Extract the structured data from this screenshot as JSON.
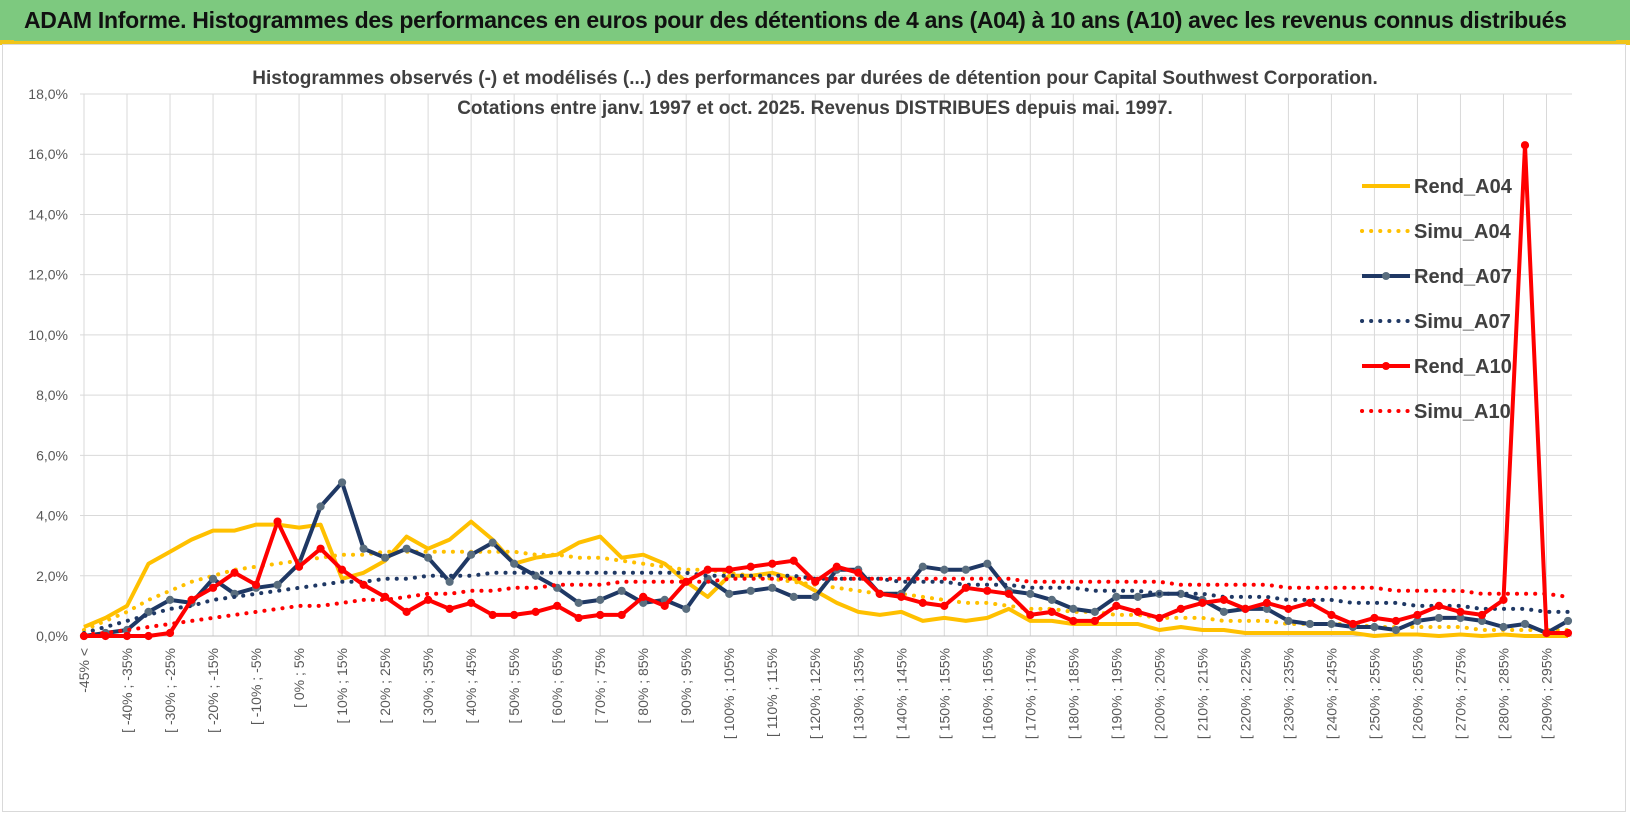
{
  "banner": {
    "title": "ADAM Informe. Histogrammes des performances en euros pour des détentions de 4 ans (A04) à 10 ans (A10) avec les revenus connus distribués"
  },
  "colors": {
    "banner_bg": "#7dc97f",
    "accent": "#f0c419",
    "A04": "#ffc000",
    "A07": "#1f3864",
    "A07_marker": "#5a6e7f",
    "A10": "#ff0000"
  },
  "chart_data": {
    "type": "line",
    "title": [
      "Histogrammes observés (-) et modélisés (...) des performances par durées de détention pour Capital Southwest Corporation.",
      "Cotations entre janv. 1997 et oct. 2025. Revenus DISTRIBUES depuis mai. 1997."
    ],
    "ylim": [
      0,
      18
    ],
    "y_ticks": [
      "0,0%",
      "2,0%",
      "4,0%",
      "6,0%",
      "8,0%",
      "10,0%",
      "12,0%",
      "14,0%",
      "16,0%",
      "18,0%"
    ],
    "grid": true,
    "legend_position": "right",
    "x_count": 70,
    "x_tick_labels": [
      "-45% <",
      "[ -40% ; -35%",
      "[ -30% ; -25%",
      "[ -20% ; -15%",
      "[ -10% ; -5%",
      "[ 0% ; 5%",
      "[ 10% ; 15%",
      "[ 20% ; 25%",
      "[ 30% ; 35%",
      "[ 40% ; 45%",
      "[ 50% ; 55%",
      "[ 60% ; 65%",
      "[ 70% ; 75%",
      "[ 80% ; 85%",
      "[ 90% ; 95%",
      "[ 100% ; 105%",
      "[ 110% ; 115%",
      "[ 120% ; 125%",
      "[ 130% ; 135%",
      "[ 140% ; 145%",
      "[ 150% ; 155%",
      "[ 160% ; 165%",
      "[ 170% ; 175%",
      "[ 180% ; 185%",
      "[ 190% ; 195%",
      "[ 200% ; 205%",
      "[ 210% ; 215%",
      "[ 220% ; 225%",
      "[ 230% ; 235%",
      "[ 240% ; 245%",
      "[ 250% ; 255%",
      "[ 260% ; 265%",
      "[ 270% ; 275%",
      "[ 280% ; 285%",
      "[ 290% ; 295%"
    ],
    "series": [
      {
        "name": "Rend_A04",
        "style": "solid",
        "color": "#ffc000",
        "markers": false,
        "values": [
          0.3,
          0.6,
          1.0,
          2.4,
          2.8,
          3.2,
          3.5,
          3.5,
          3.7,
          3.7,
          3.6,
          3.7,
          1.9,
          2.1,
          2.5,
          3.3,
          2.9,
          3.2,
          3.8,
          3.2,
          2.4,
          2.6,
          2.7,
          3.1,
          3.3,
          2.6,
          2.7,
          2.4,
          1.8,
          1.3,
          2.0,
          2.0,
          2.1,
          1.9,
          1.5,
          1.1,
          0.8,
          0.7,
          0.8,
          0.5,
          0.6,
          0.5,
          0.6,
          0.9,
          0.5,
          0.5,
          0.4,
          0.4,
          0.4,
          0.4,
          0.2,
          0.3,
          0.2,
          0.2,
          0.1,
          0.1,
          0.1,
          0.1,
          0.1,
          0.1,
          0.0,
          0.05,
          0.05,
          0.0,
          0.05,
          0.0,
          0.05,
          0.0,
          0.0,
          0.0
        ]
      },
      {
        "name": "Simu_A04",
        "style": "dotted",
        "color": "#ffc000",
        "markers": false,
        "values": [
          0.2,
          0.5,
          0.8,
          1.2,
          1.5,
          1.8,
          2.0,
          2.2,
          2.3,
          2.4,
          2.5,
          2.6,
          2.7,
          2.7,
          2.8,
          2.8,
          2.8,
          2.8,
          2.8,
          2.8,
          2.8,
          2.7,
          2.7,
          2.6,
          2.6,
          2.5,
          2.4,
          2.3,
          2.2,
          2.2,
          2.1,
          2.0,
          1.9,
          1.8,
          1.7,
          1.6,
          1.5,
          1.4,
          1.4,
          1.3,
          1.2,
          1.1,
          1.1,
          1.0,
          0.9,
          0.9,
          0.8,
          0.8,
          0.7,
          0.7,
          0.6,
          0.6,
          0.6,
          0.5,
          0.5,
          0.5,
          0.4,
          0.4,
          0.4,
          0.4,
          0.3,
          0.3,
          0.3,
          0.3,
          0.3,
          0.2,
          0.2,
          0.2,
          0.2,
          0.2
        ]
      },
      {
        "name": "Rend_A07",
        "style": "solid",
        "color": "#1f3864",
        "markers": true,
        "values": [
          0.0,
          0.1,
          0.2,
          0.8,
          1.2,
          1.1,
          1.9,
          1.4,
          1.6,
          1.7,
          2.4,
          4.3,
          5.1,
          2.9,
          2.6,
          2.9,
          2.6,
          1.8,
          2.7,
          3.1,
          2.4,
          2.0,
          1.6,
          1.1,
          1.2,
          1.5,
          1.1,
          1.2,
          0.9,
          1.9,
          1.4,
          1.5,
          1.6,
          1.3,
          1.3,
          2.2,
          2.2,
          1.4,
          1.4,
          2.3,
          2.2,
          2.2,
          2.4,
          1.5,
          1.4,
          1.2,
          0.9,
          0.8,
          1.3,
          1.3,
          1.4,
          1.4,
          1.2,
          0.8,
          0.9,
          0.9,
          0.5,
          0.4,
          0.4,
          0.3,
          0.3,
          0.2,
          0.5,
          0.6,
          0.6,
          0.5,
          0.3,
          0.4,
          0.1,
          0.5
        ]
      },
      {
        "name": "Simu_A07",
        "style": "dotted",
        "color": "#1f3864",
        "markers": false,
        "values": [
          0.1,
          0.3,
          0.5,
          0.7,
          0.9,
          1.0,
          1.2,
          1.3,
          1.4,
          1.5,
          1.6,
          1.7,
          1.8,
          1.8,
          1.9,
          1.9,
          2.0,
          2.0,
          2.0,
          2.1,
          2.1,
          2.1,
          2.1,
          2.1,
          2.1,
          2.1,
          2.1,
          2.1,
          2.1,
          2.0,
          2.0,
          2.0,
          2.0,
          2.0,
          1.9,
          1.9,
          1.9,
          1.9,
          1.8,
          1.8,
          1.8,
          1.7,
          1.7,
          1.7,
          1.6,
          1.6,
          1.6,
          1.5,
          1.5,
          1.5,
          1.4,
          1.4,
          1.4,
          1.3,
          1.3,
          1.3,
          1.2,
          1.2,
          1.2,
          1.1,
          1.1,
          1.1,
          1.0,
          1.0,
          1.0,
          0.9,
          0.9,
          0.9,
          0.8,
          0.8
        ]
      },
      {
        "name": "Rend_A10",
        "style": "solid",
        "color": "#ff0000",
        "markers": true,
        "values": [
          0.0,
          0.0,
          0.0,
          0.0,
          0.1,
          1.2,
          1.6,
          2.1,
          1.7,
          3.8,
          2.3,
          2.9,
          2.2,
          1.7,
          1.3,
          0.8,
          1.2,
          0.9,
          1.1,
          0.7,
          0.7,
          0.8,
          1.0,
          0.6,
          0.7,
          0.7,
          1.3,
          1.0,
          1.8,
          2.2,
          2.2,
          2.3,
          2.4,
          2.5,
          1.8,
          2.3,
          2.1,
          1.4,
          1.3,
          1.1,
          1.0,
          1.6,
          1.5,
          1.4,
          0.7,
          0.8,
          0.5,
          0.5,
          1.0,
          0.8,
          0.6,
          0.9,
          1.1,
          1.2,
          0.9,
          1.1,
          0.9,
          1.1,
          0.7,
          0.4,
          0.6,
          0.5,
          0.7,
          1.0,
          0.8,
          0.7,
          1.2,
          16.3,
          0.1,
          0.1
        ]
      },
      {
        "name": "Simu_A10",
        "style": "dotted",
        "color": "#ff0000",
        "markers": false,
        "values": [
          0.05,
          0.1,
          0.2,
          0.3,
          0.4,
          0.5,
          0.6,
          0.7,
          0.8,
          0.9,
          1.0,
          1.0,
          1.1,
          1.2,
          1.2,
          1.3,
          1.4,
          1.4,
          1.5,
          1.5,
          1.6,
          1.6,
          1.7,
          1.7,
          1.7,
          1.8,
          1.8,
          1.8,
          1.8,
          1.8,
          1.9,
          1.9,
          1.9,
          1.9,
          1.9,
          1.9,
          1.9,
          1.9,
          1.9,
          1.9,
          1.9,
          1.9,
          1.9,
          1.9,
          1.8,
          1.8,
          1.8,
          1.8,
          1.8,
          1.8,
          1.8,
          1.7,
          1.7,
          1.7,
          1.7,
          1.7,
          1.6,
          1.6,
          1.6,
          1.6,
          1.6,
          1.5,
          1.5,
          1.5,
          1.5,
          1.4,
          1.4,
          1.4,
          1.4,
          1.3
        ]
      }
    ]
  }
}
